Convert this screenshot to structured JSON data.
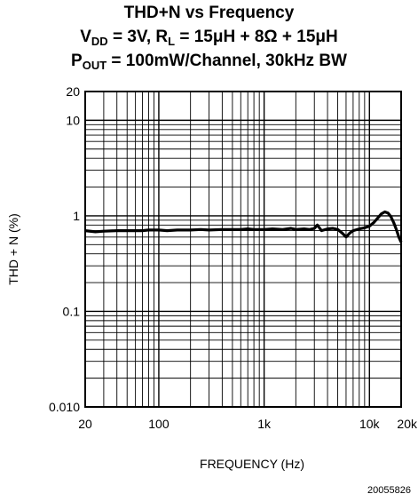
{
  "chart_data": {
    "type": "line",
    "title": "THD+N vs Frequency",
    "subtitle_lines": [
      [
        "V",
        "DD",
        " = 3V, R",
        "L",
        " = 15μH + 8Ω + 15μH"
      ],
      [
        "P",
        "OUT",
        " = 100mW/Channel, 30kHz BW"
      ]
    ],
    "xlabel": "FREQUENCY (Hz)",
    "ylabel": "THD + N (%)",
    "x_scale": "log",
    "y_scale": "log",
    "xlim": [
      20,
      20000
    ],
    "ylim": [
      0.01,
      20
    ],
    "x_ticks": [
      {
        "value": 20,
        "label": "20"
      },
      {
        "value": 100,
        "label": "100"
      },
      {
        "value": 1000,
        "label": "1k"
      },
      {
        "value": 10000,
        "label": "10k"
      },
      {
        "value": 20000,
        "label": "20k"
      }
    ],
    "y_ticks": [
      {
        "value": 20,
        "label": "20"
      },
      {
        "value": 10,
        "label": "10"
      },
      {
        "value": 1,
        "label": "1"
      },
      {
        "value": 0.1,
        "label": "0.1"
      },
      {
        "value": 0.01,
        "label": "0.010"
      }
    ],
    "grid": true,
    "series": [
      {
        "x": [
          20,
          25,
          30,
          40,
          50,
          60,
          70,
          80,
          100,
          120,
          150,
          200,
          250,
          300,
          400,
          500,
          600,
          700,
          800,
          1000,
          1200,
          1500,
          1800,
          2000,
          2400,
          2700,
          3000,
          3200,
          3500,
          4000,
          4500,
          5000,
          5500,
          6000,
          6500,
          7000,
          8000,
          9000,
          10000,
          11000,
          12000,
          13000,
          14000,
          15000,
          16000,
          17000,
          18000,
          19000,
          20000
        ],
        "y": [
          0.7,
          0.68,
          0.69,
          0.7,
          0.7,
          0.7,
          0.7,
          0.71,
          0.71,
          0.7,
          0.71,
          0.71,
          0.72,
          0.71,
          0.72,
          0.72,
          0.72,
          0.73,
          0.72,
          0.72,
          0.73,
          0.72,
          0.74,
          0.72,
          0.73,
          0.72,
          0.74,
          0.8,
          0.7,
          0.73,
          0.74,
          0.72,
          0.66,
          0.6,
          0.66,
          0.7,
          0.73,
          0.75,
          0.78,
          0.85,
          0.95,
          1.05,
          1.1,
          1.07,
          0.98,
          0.85,
          0.72,
          0.6,
          0.53
        ]
      }
    ]
  },
  "figure_id": "20055826"
}
